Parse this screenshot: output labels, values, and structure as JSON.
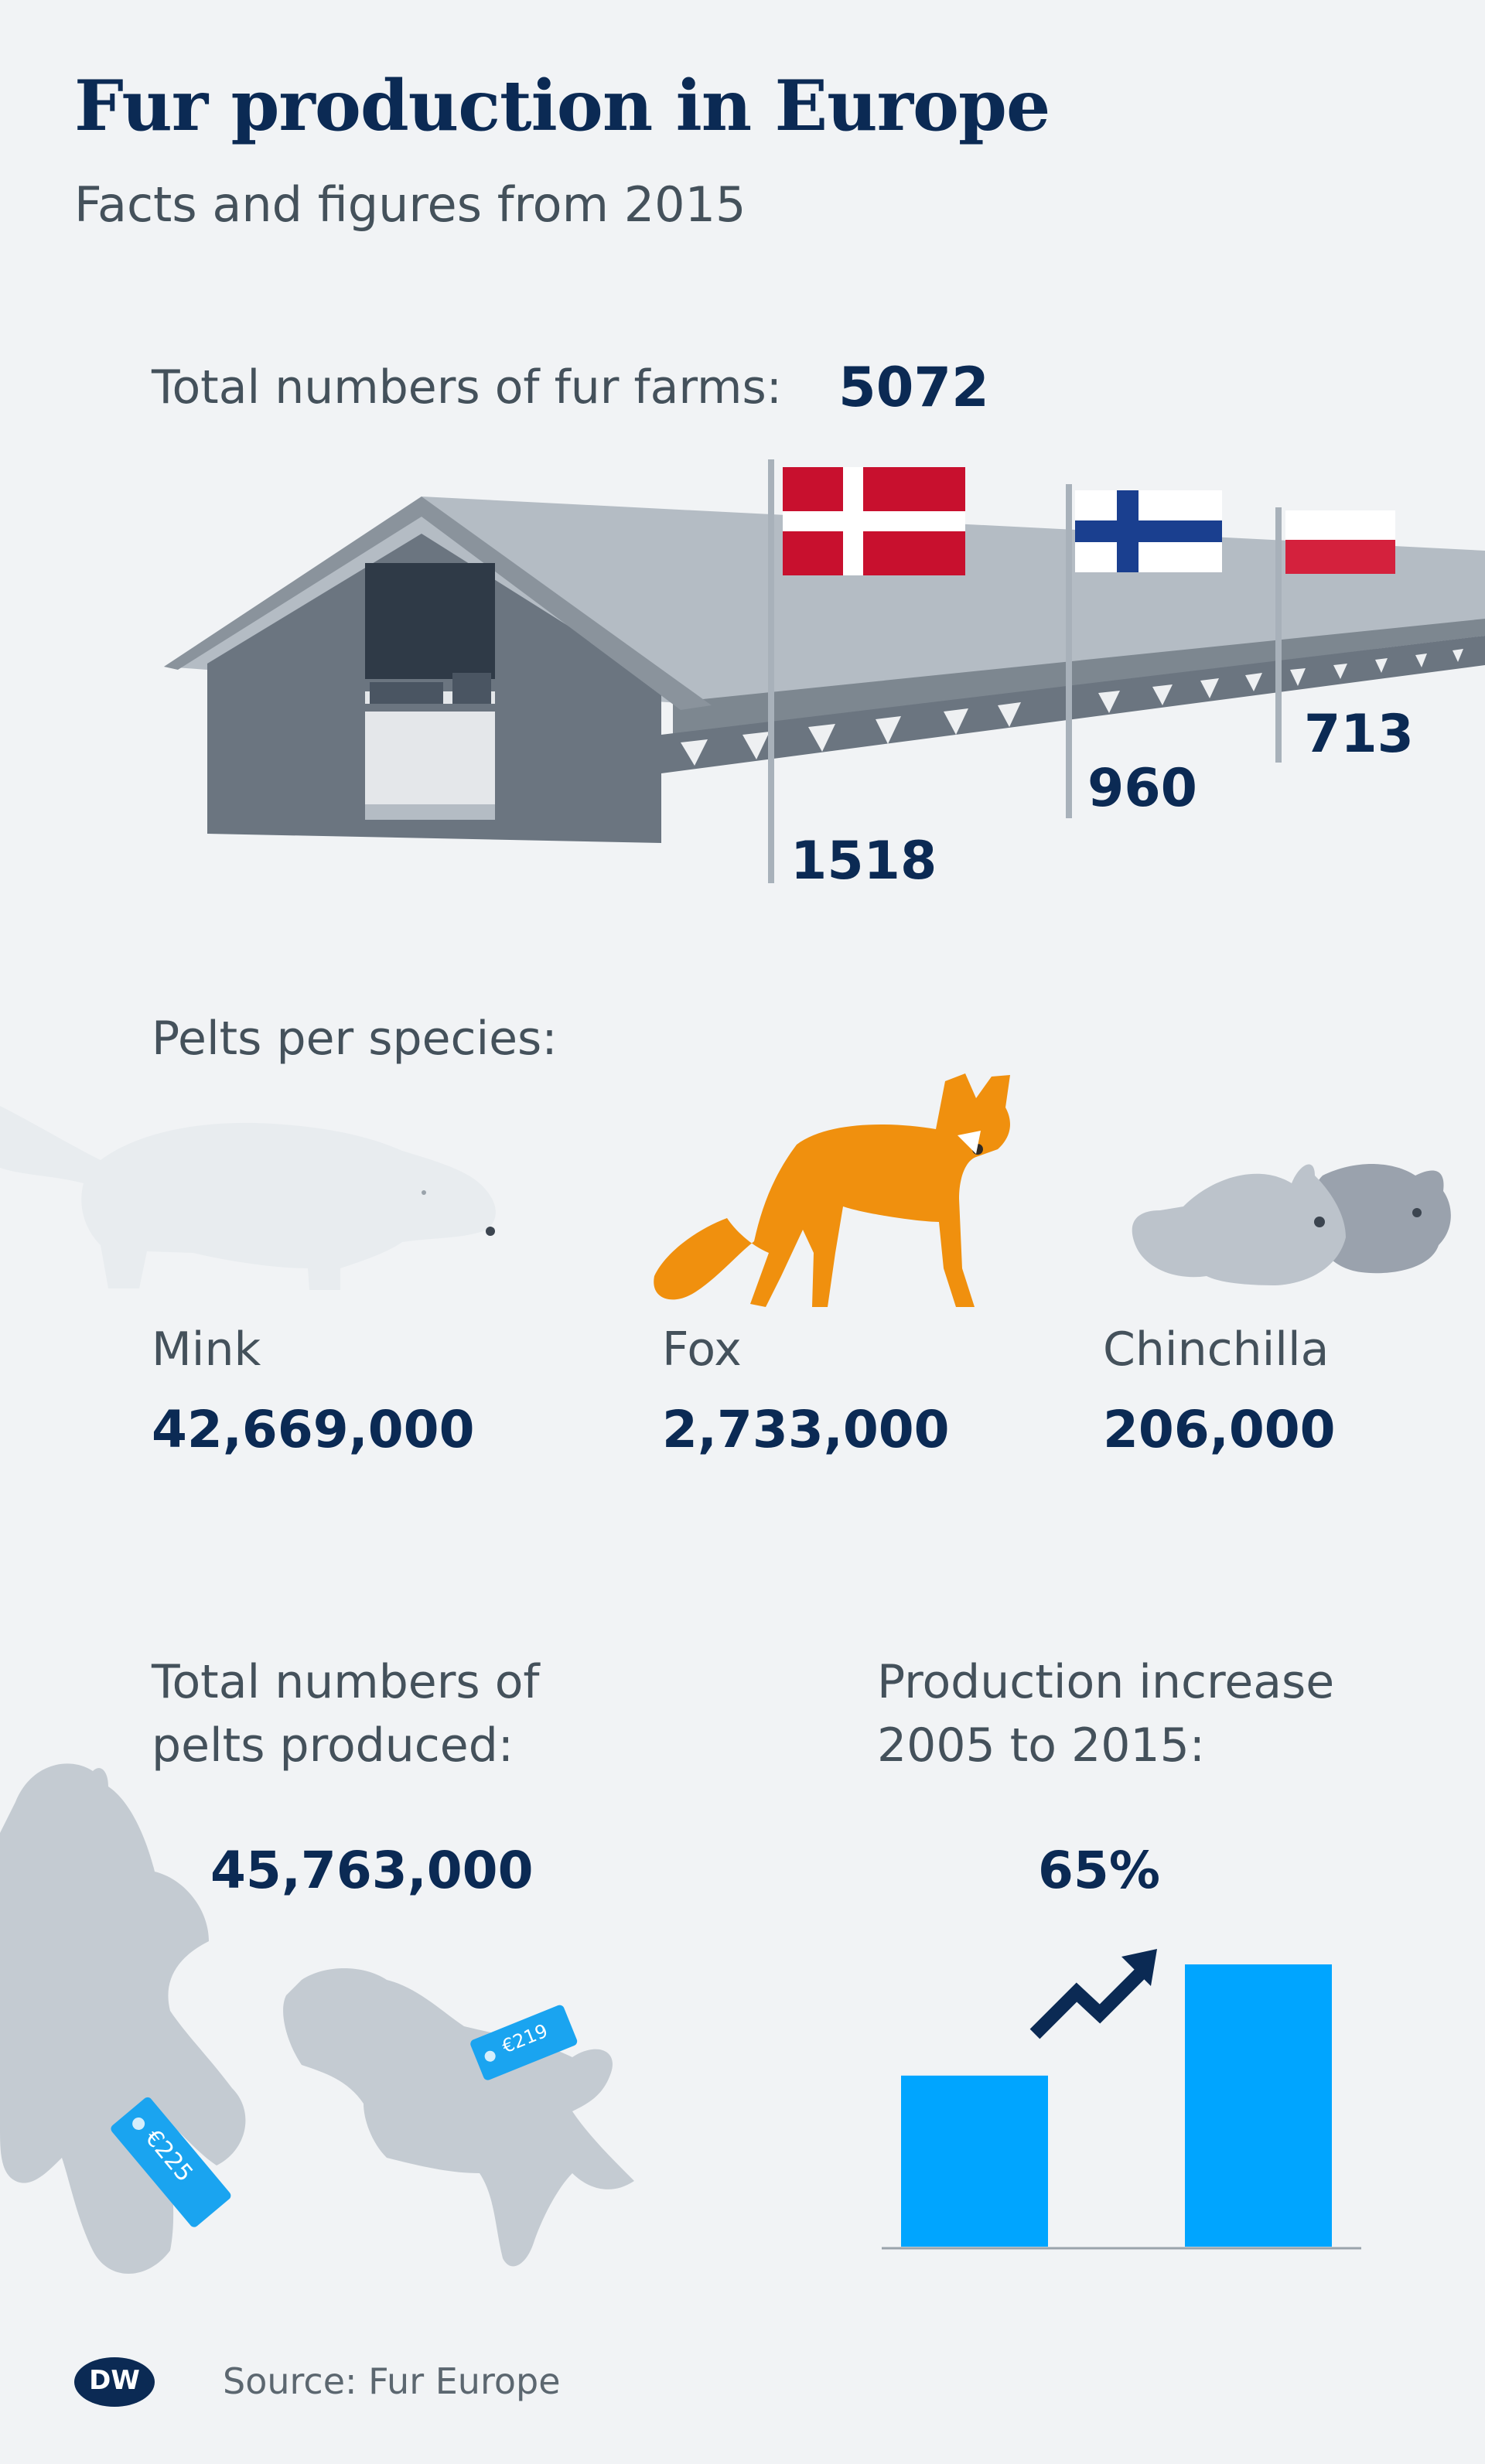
{
  "header": {
    "title": "Fur production in Europe",
    "subtitle": "Facts and figures from 2015"
  },
  "farms": {
    "label": "Total numbers of fur farms:",
    "total": "5072",
    "countries": [
      {
        "flag": "denmark-flag",
        "value": "1518"
      },
      {
        "flag": "finland-flag",
        "value": "960"
      },
      {
        "flag": "poland-flag",
        "value": "713"
      }
    ]
  },
  "species": {
    "label": "Pelts per species:",
    "items": [
      {
        "name": "Mink",
        "value": "42,669,000",
        "icon": "mink-icon"
      },
      {
        "name": "Fox",
        "value": "2,733,000",
        "icon": "fox-icon"
      },
      {
        "name": "Chinchilla",
        "value": "206,000",
        "icon": "chinchilla-icon"
      }
    ]
  },
  "pelts": {
    "label_line1": "Total numbers of",
    "label_line2": "pelts produced:",
    "total": "45,763,000",
    "tags": [
      "€225",
      "€219"
    ]
  },
  "increase": {
    "label_line1": "Production increase",
    "label_line2": "2005 to 2015:",
    "percent": "65%"
  },
  "footer": {
    "logo": "DW",
    "source": "Source: Fur Europe"
  },
  "colors": {
    "navy": "#0b2a54",
    "text": "#44515b",
    "barn_roof": "#b4bcc4",
    "barn_wall": "#6b7580",
    "fox": "#f0900e",
    "bar": "#00a5ff",
    "tag": "#1aa4f0"
  },
  "chart_data": {
    "type": "bar",
    "title": "Production increase 2005 to 2015:",
    "categories": [
      "",
      ""
    ],
    "values": [
      100,
      165
    ],
    "annotation": "65%"
  }
}
